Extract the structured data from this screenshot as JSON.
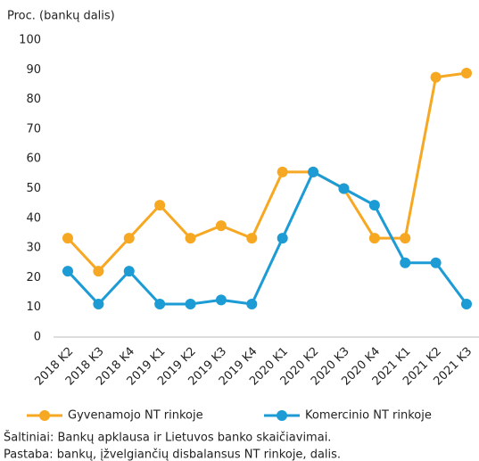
{
  "chart_data": {
    "type": "line",
    "y_label": "Proc. (bankų dalis)",
    "categories": [
      "2018 K2",
      "2018 K3",
      "2018 K4",
      "2019 K1",
      "2019 K2",
      "2019 K3",
      "2019 K4",
      "2020 K1",
      "2020 K2",
      "2020 K3",
      "2020 K4",
      "2021 K1",
      "2021 K2",
      "2021 K3"
    ],
    "series": [
      {
        "name": "Gyvenamojo NT rinkoje",
        "color": "#f7a823",
        "values": [
          33.3,
          22.2,
          33.3,
          44.4,
          33.3,
          37.5,
          33.3,
          55.6,
          55.6,
          50,
          33.3,
          33.3,
          87.5,
          88.9
        ]
      },
      {
        "name": "Komercinio NT rinkoje",
        "color": "#1c9bd5",
        "values": [
          22.2,
          11.1,
          22.2,
          11.1,
          11.1,
          12.5,
          11.1,
          33.3,
          55.6,
          50,
          44.4,
          25,
          25,
          11.1
        ]
      }
    ],
    "ylim": [
      0,
      100
    ],
    "yticks": [
      0,
      10,
      20,
      30,
      40,
      50,
      60,
      70,
      80,
      90,
      100
    ],
    "grid": false,
    "legend": "bottom",
    "notes": [
      "Šaltiniai: Bankų apklausa ir Lietuvos banko skaičiavimai.",
      "Pastaba: bankų, įžvelgiančių disbalansus NT rinkoje, dalis."
    ]
  }
}
